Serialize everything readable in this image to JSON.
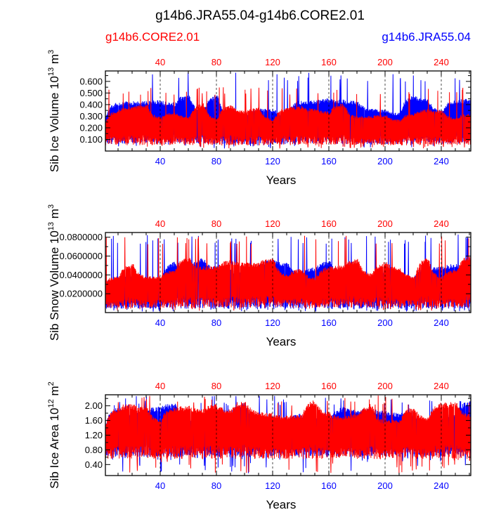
{
  "figure": {
    "title": "g14b6.JRA55.04-g14b6.CORE2.01",
    "legend_left": "g14b6.CORE2.01",
    "legend_right": "g14b6.JRA55.04",
    "legend_left_color": "#ff0000",
    "legend_right_color": "#0000ff"
  },
  "chart_data": [
    {
      "type": "line",
      "title": "",
      "xlabel": "Years",
      "ylabel_main": "Sib Ice Volume 10",
      "ylabel_exp": "13",
      "ylabel_unit": " m",
      "ylabel_unit_exp": "3",
      "xlim": [
        1,
        261
      ],
      "ylim": [
        0.0,
        0.69
      ],
      "x_ticks": [
        40,
        80,
        120,
        160,
        200,
        240
      ],
      "y_ticks": [
        0.1,
        0.2,
        0.3,
        0.4,
        0.5,
        0.6
      ],
      "y_tick_labels": [
        "0.100",
        "0.200",
        "0.300",
        "0.400",
        "0.500",
        "0.600"
      ],
      "series": [
        {
          "name": "g14b6.JRA55.04",
          "color": "#0000ff",
          "min": 0.02,
          "max": 0.68,
          "typ_max": 0.5,
          "typ_min": 0.06
        },
        {
          "name": "g14b6.CORE2.01",
          "color": "#ff0000",
          "min": 0.02,
          "max": 0.55,
          "typ_max": 0.42,
          "typ_min": 0.05
        }
      ]
    },
    {
      "type": "line",
      "title": "",
      "xlabel": "Years",
      "ylabel_main": "Sib Snow Volume 10",
      "ylabel_exp": "13",
      "ylabel_unit": " m",
      "ylabel_unit_exp": "3",
      "xlim": [
        1,
        261
      ],
      "ylim": [
        0.0,
        0.085
      ],
      "x_ticks": [
        40,
        80,
        120,
        160,
        200,
        240
      ],
      "y_ticks": [
        0.02,
        0.04,
        0.06,
        0.08
      ],
      "y_tick_labels": [
        "0.0200000",
        "0.0400000",
        "0.0600000",
        "0.0800000"
      ],
      "series": [
        {
          "name": "g14b6.JRA55.04",
          "color": "#0000ff",
          "min": 0.001,
          "max": 0.083,
          "typ_max": 0.06,
          "typ_min": 0.004
        },
        {
          "name": "g14b6.CORE2.01",
          "color": "#ff0000",
          "min": 0.002,
          "max": 0.082,
          "typ_max": 0.062,
          "typ_min": 0.005
        }
      ]
    },
    {
      "type": "line",
      "title": "",
      "xlabel": "Years",
      "ylabel_main": "Sib Ice Area 10",
      "ylabel_exp": "12",
      "ylabel_unit": " m",
      "ylabel_unit_exp": "2",
      "xlim": [
        1,
        261
      ],
      "ylim": [
        0.1,
        2.3
      ],
      "x_ticks": [
        40,
        80,
        120,
        160,
        200,
        240
      ],
      "y_ticks": [
        0.4,
        0.8,
        1.2,
        1.6,
        2.0
      ],
      "y_tick_labels": [
        "0.40",
        "0.80",
        "1.20",
        "1.60",
        "2.00"
      ],
      "series": [
        {
          "name": "g14b6.JRA55.04",
          "color": "#0000ff",
          "min": 0.15,
          "max": 2.28,
          "typ_max": 2.28,
          "typ_min": 0.6
        },
        {
          "name": "g14b6.CORE2.01",
          "color": "#ff0000",
          "min": 0.15,
          "max": 2.28,
          "typ_max": 2.28,
          "typ_min": 0.55
        }
      ]
    }
  ]
}
